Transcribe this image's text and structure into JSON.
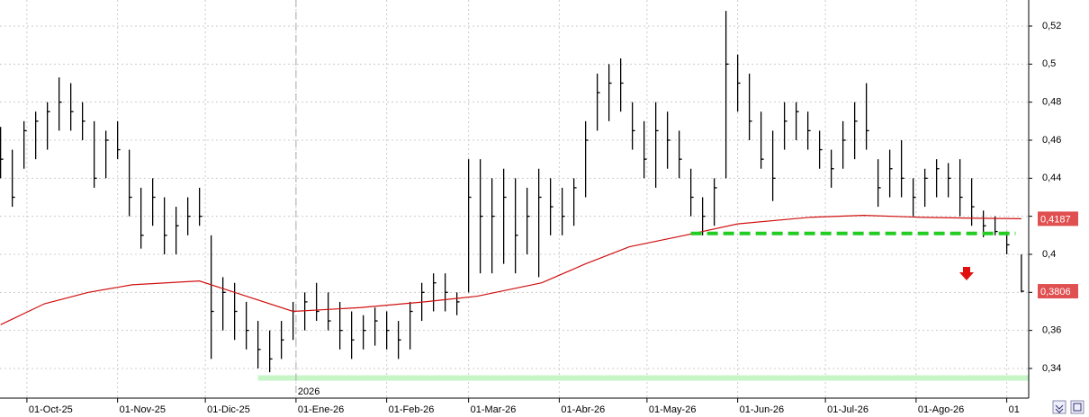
{
  "chart_data": {
    "type": "ohlc",
    "xlim": [
      -0.2,
      351.5
    ],
    "xticks": [
      {
        "value": 9,
        "label": "01-Oct-25"
      },
      {
        "value": 40,
        "label": "01-Nov-25"
      },
      {
        "value": 70,
        "label": "01-Dic-25"
      },
      {
        "value": 101,
        "label": "01-Ene-26"
      },
      {
        "value": 132,
        "label": "01-Feb-26"
      },
      {
        "value": 160,
        "label": "01-Mar-26"
      },
      {
        "value": 191,
        "label": "01-Abr-26"
      },
      {
        "value": 221,
        "label": "01-May-26"
      },
      {
        "value": 252,
        "label": "01-Jun-26"
      },
      {
        "value": 282,
        "label": "01-Jul-26"
      },
      {
        "value": 313,
        "label": "01-Ago-26"
      },
      {
        "value": 344,
        "label": "01"
      }
    ],
    "year_marker": {
      "value": 101,
      "label": "2026"
    },
    "ylim": [
      0.3244,
      0.5337
    ],
    "yticks": [
      {
        "value": 0.34,
        "label": "0,34"
      },
      {
        "value": 0.36,
        "label": "0,36"
      },
      {
        "value": 0.38,
        "label": "0,38"
      },
      {
        "value": 0.4,
        "label": "0,4"
      },
      {
        "value": 0.42,
        "label": "0,42"
      },
      {
        "value": 0.44,
        "label": "0,44"
      },
      {
        "value": 0.46,
        "label": "0,46"
      },
      {
        "value": 0.48,
        "label": "0,48"
      },
      {
        "value": 0.5,
        "label": "0,5"
      },
      {
        "value": 0.52,
        "label": "0,52"
      }
    ],
    "grid": true,
    "color": "#000000",
    "x": [
      0,
      4,
      8,
      12,
      16,
      20,
      24,
      28,
      32,
      36,
      40,
      44,
      48,
      52,
      56,
      60,
      64,
      68,
      72,
      76,
      80,
      84,
      88,
      92,
      96,
      100,
      104,
      108,
      112,
      116,
      120,
      124,
      128,
      132,
      136,
      140,
      144,
      148,
      152,
      156,
      160,
      164,
      168,
      172,
      176,
      180,
      184,
      188,
      192,
      196,
      200,
      204,
      208,
      212,
      216,
      220,
      224,
      228,
      232,
      236,
      240,
      244,
      248,
      252,
      256,
      260,
      264,
      268,
      272,
      276,
      280,
      284,
      288,
      292,
      296,
      300,
      304,
      308,
      312,
      316,
      320,
      324,
      328,
      332,
      336,
      340,
      344,
      349
    ],
    "high": [
      0.467,
      0.455,
      0.47,
      0.475,
      0.48,
      0.493,
      0.49,
      0.48,
      0.47,
      0.465,
      0.47,
      0.455,
      0.435,
      0.44,
      0.43,
      0.425,
      0.43,
      0.435,
      0.41,
      0.388,
      0.385,
      0.375,
      0.365,
      0.36,
      0.365,
      0.375,
      0.38,
      0.385,
      0.38,
      0.375,
      0.37,
      0.368,
      0.372,
      0.37,
      0.365,
      0.375,
      0.385,
      0.39,
      0.39,
      0.38,
      0.45,
      0.45,
      0.44,
      0.445,
      0.44,
      0.435,
      0.445,
      0.44,
      0.435,
      0.44,
      0.47,
      0.495,
      0.5,
      0.503,
      0.48,
      0.47,
      0.48,
      0.475,
      0.465,
      0.445,
      0.43,
      0.44,
      0.528,
      0.505,
      0.495,
      0.475,
      0.465,
      0.48,
      0.48,
      0.475,
      0.465,
      0.455,
      0.47,
      0.48,
      0.49,
      0.45,
      0.455,
      0.46,
      0.44,
      0.445,
      0.45,
      0.448,
      0.45,
      0.44,
      0.423,
      0.42,
      0.412,
      0.4
    ],
    "low": [
      0.44,
      0.425,
      0.445,
      0.45,
      0.455,
      0.465,
      0.465,
      0.46,
      0.435,
      0.44,
      0.45,
      0.42,
      0.403,
      0.415,
      0.4,
      0.4,
      0.41,
      0.415,
      0.345,
      0.36,
      0.355,
      0.35,
      0.34,
      0.338,
      0.345,
      0.355,
      0.36,
      0.365,
      0.36,
      0.35,
      0.345,
      0.35,
      0.352,
      0.35,
      0.345,
      0.35,
      0.365,
      0.37,
      0.37,
      0.368,
      0.38,
      0.39,
      0.39,
      0.395,
      0.39,
      0.4,
      0.388,
      0.41,
      0.41,
      0.415,
      0.43,
      0.465,
      0.47,
      0.475,
      0.455,
      0.44,
      0.435,
      0.445,
      0.44,
      0.42,
      0.41,
      0.415,
      0.44,
      0.475,
      0.46,
      0.445,
      0.428,
      0.455,
      0.46,
      0.455,
      0.445,
      0.435,
      0.445,
      0.45,
      0.455,
      0.425,
      0.43,
      0.43,
      0.42,
      0.425,
      0.43,
      0.43,
      0.42,
      0.415,
      0.409,
      0.41,
      0.4,
      0.38
    ],
    "close": [
      0.45,
      0.43,
      0.465,
      0.47,
      0.475,
      0.48,
      0.475,
      0.47,
      0.44,
      0.46,
      0.455,
      0.43,
      0.41,
      0.43,
      0.41,
      0.415,
      0.42,
      0.42,
      0.37,
      0.38,
      0.37,
      0.36,
      0.35,
      0.345,
      0.355,
      0.37,
      0.375,
      0.37,
      0.365,
      0.36,
      0.355,
      0.36,
      0.365,
      0.36,
      0.355,
      0.37,
      0.38,
      0.385,
      0.38,
      0.375,
      0.43,
      0.42,
      0.42,
      0.43,
      0.41,
      0.42,
      0.43,
      0.425,
      0.42,
      0.435,
      0.46,
      0.485,
      0.49,
      0.49,
      0.465,
      0.45,
      0.465,
      0.46,
      0.45,
      0.43,
      0.42,
      0.435,
      0.5,
      0.49,
      0.47,
      0.45,
      0.44,
      0.47,
      0.475,
      0.465,
      0.455,
      0.445,
      0.46,
      0.47,
      0.465,
      0.435,
      0.445,
      0.44,
      0.43,
      0.44,
      0.445,
      0.44,
      0.43,
      0.425,
      0.415,
      0.412,
      0.405,
      0.3806
    ],
    "ma": {
      "color": "#d01010",
      "x": [
        0,
        15,
        30,
        45,
        68,
        80,
        100,
        123,
        145,
        163,
        185,
        200,
        215,
        234,
        252,
        277,
        295,
        314,
        332,
        349
      ],
      "values": [
        0.363,
        0.374,
        0.38,
        0.384,
        0.386,
        0.38,
        0.37,
        0.372,
        0.375,
        0.378,
        0.385,
        0.395,
        0.404,
        0.41,
        0.416,
        0.4195,
        0.4205,
        0.4195,
        0.419,
        0.4187
      ]
    },
    "ma_last": {
      "value": 0.4187,
      "label": "0,4187"
    },
    "last": {
      "value": 0.3806,
      "label": "0,3806"
    },
    "support": {
      "color": "#22cc22",
      "y": 0.411,
      "x": [
        236,
        347
      ]
    },
    "floor": {
      "color": "#c8f5c8",
      "y": 0.335,
      "x": [
        88,
        351.5
      ]
    }
  }
}
